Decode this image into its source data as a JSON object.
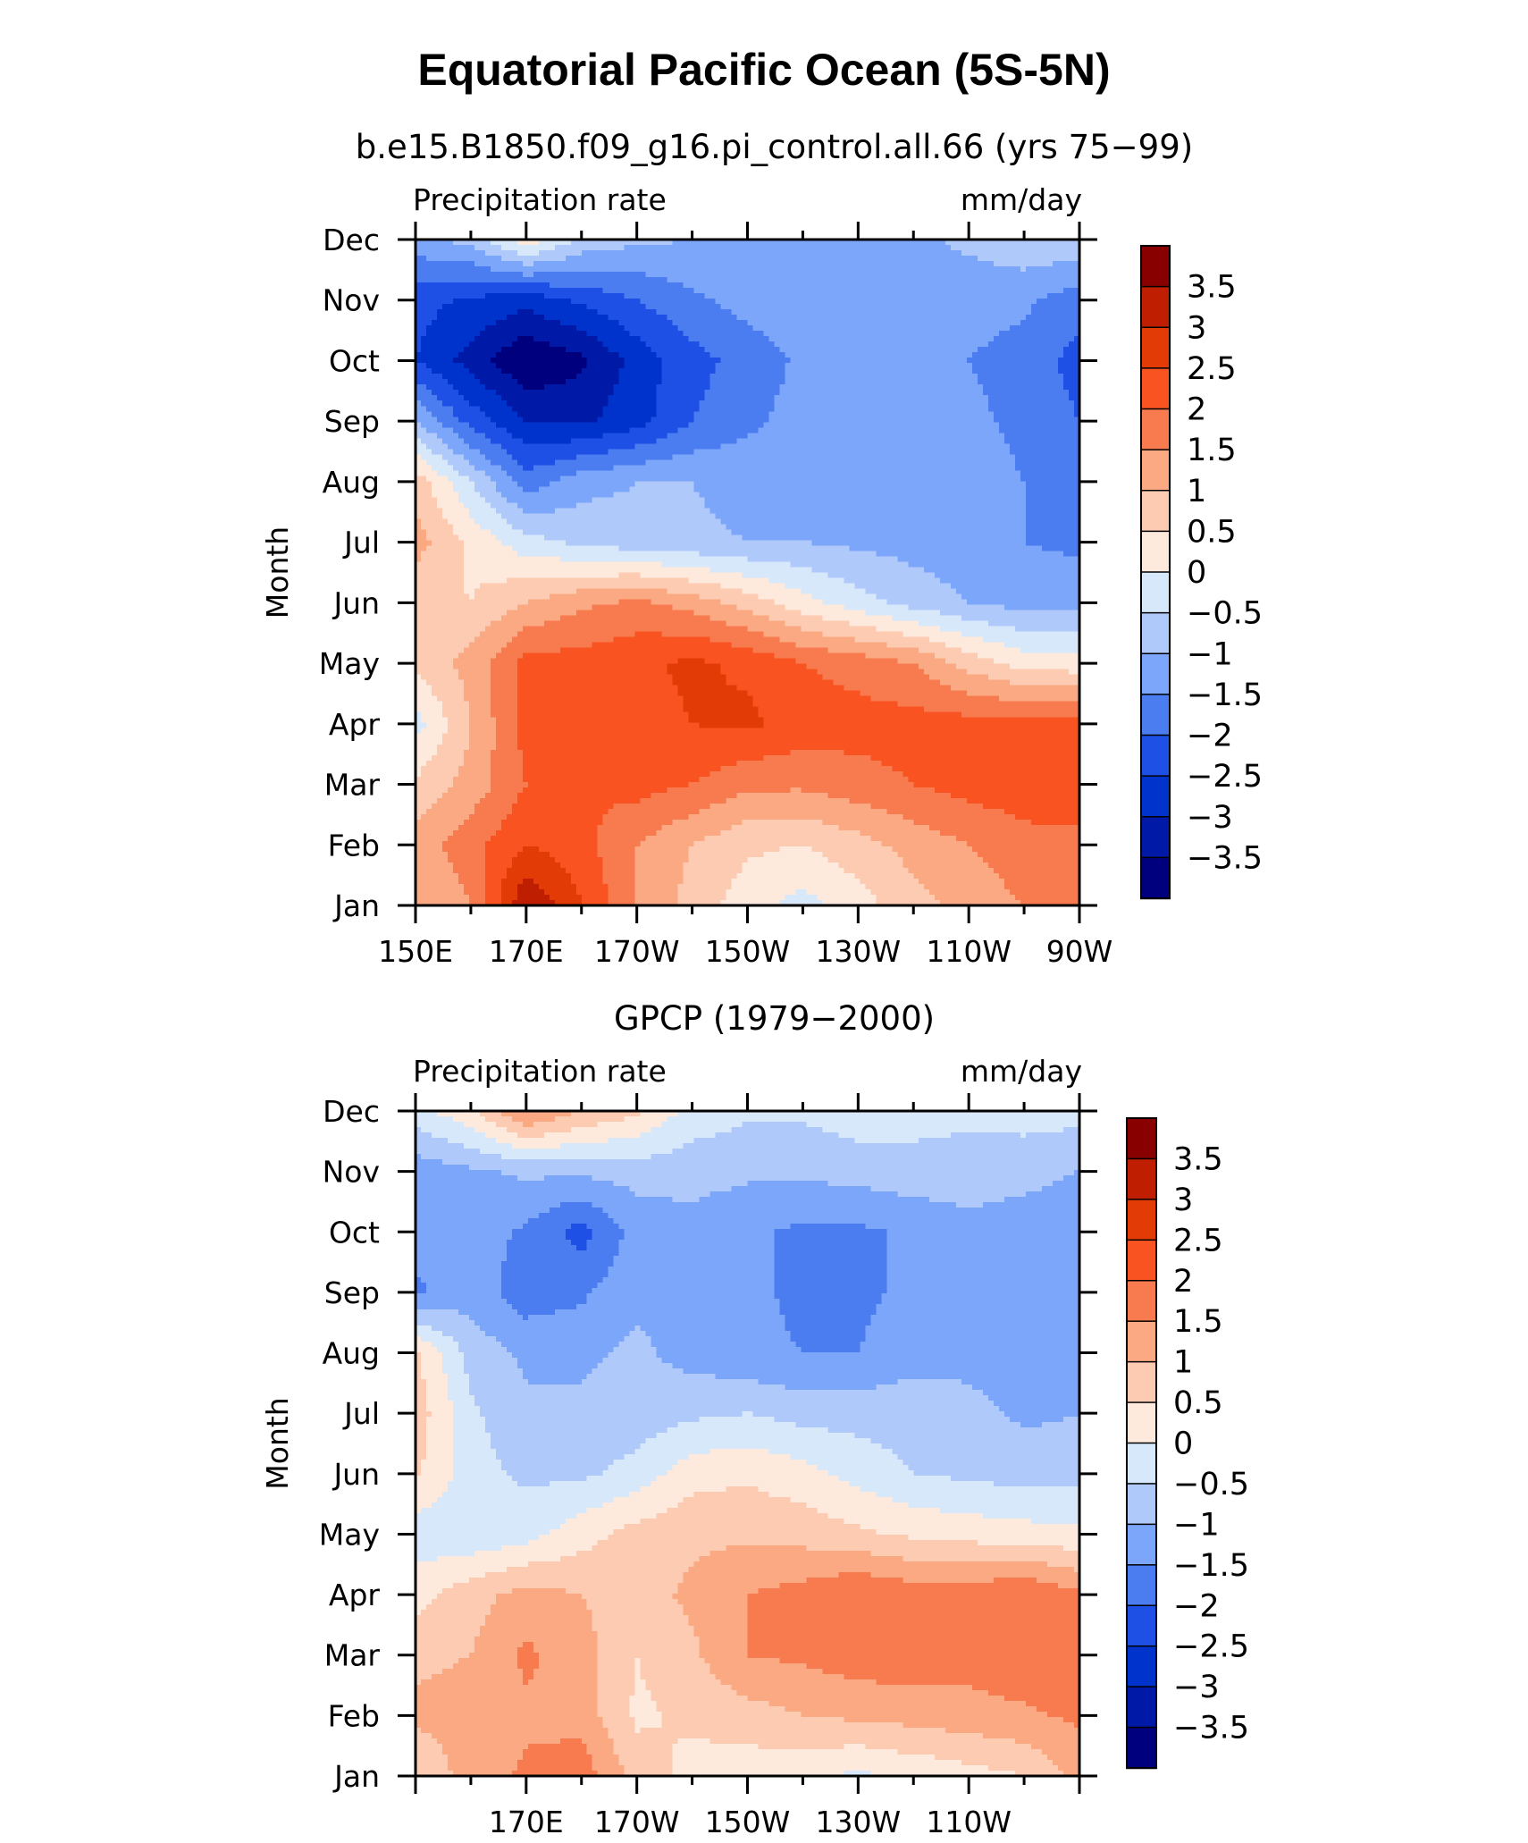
{
  "figure_title": "Equatorial Pacific Ocean (5S-5N)",
  "colorbar_colors": [
    "#00007f",
    "#0019a6",
    "#0032cc",
    "#1e50e6",
    "#4b7df0",
    "#7ca6f9",
    "#afc9fa",
    "#d7e8fb",
    "#fdeadc",
    "#fccbb2",
    "#faa983",
    "#f87b4f",
    "#f85320",
    "#e33b05",
    "#c01e00",
    "#880000"
  ],
  "chart_data": [
    {
      "type": "heatmap",
      "title": "b.e15.B1850.f09_g16.pi_control.all.66 (yrs 75−99)",
      "variable_label": "Precipitation rate",
      "units_label": "mm/day",
      "ylabel": "Month",
      "xlabel": "",
      "x_tick_labels": [
        "150E",
        "170E",
        "170W",
        "150W",
        "130W",
        "110W",
        "90W"
      ],
      "x_tick_values": [
        150,
        170,
        190,
        210,
        230,
        250,
        270
      ],
      "xlim": [
        150,
        270
      ],
      "y_tick_labels": [
        "Jan",
        "Feb",
        "Mar",
        "Apr",
        "May",
        "Jun",
        "Jul",
        "Aug",
        "Sep",
        "Oct",
        "Nov",
        "Dec"
      ],
      "y_tick_values": [
        1,
        2,
        3,
        4,
        5,
        6,
        7,
        8,
        9,
        10,
        11,
        12
      ],
      "ylim": [
        1,
        12
      ],
      "colorbar_levels": [
        -3.5,
        -3,
        -2.5,
        -2,
        -1.5,
        -1,
        -0.5,
        0,
        0.5,
        1,
        1.5,
        2,
        2.5,
        3,
        3.5
      ],
      "colorbar_labels": [
        "3.5",
        "3",
        "2.5",
        "2",
        "1.5",
        "1",
        "0.5",
        "0",
        "−0.5",
        "−1",
        "−1.5",
        "−2",
        "−2.5",
        "−3",
        "−3.5"
      ],
      "x_grid": [
        150,
        160,
        170,
        180,
        190,
        200,
        210,
        220,
        230,
        240,
        250,
        260,
        270
      ],
      "y_grid": [
        1,
        2,
        3,
        4,
        5,
        6,
        7,
        8,
        9,
        10,
        11,
        12
      ],
      "values": [
        [
          1.0,
          1.5,
          3.5,
          2.5,
          1.5,
          0.8,
          0.2,
          -0.2,
          0.3,
          0.8,
          1.2,
          1.5,
          1.5
        ],
        [
          1.2,
          1.8,
          2.5,
          2.2,
          1.5,
          1.0,
          0.6,
          0.5,
          0.8,
          1.2,
          1.5,
          1.8,
          1.8
        ],
        [
          0.6,
          1.2,
          2.0,
          2.0,
          2.2,
          2.0,
          1.6,
          1.6,
          1.8,
          2.0,
          2.2,
          2.3,
          2.5
        ],
        [
          -0.2,
          1.0,
          2.2,
          2.2,
          2.3,
          2.5,
          2.6,
          2.3,
          2.2,
          2.2,
          2.2,
          2.2,
          2.2
        ],
        [
          0.6,
          1.2,
          2.2,
          2.2,
          2.4,
          2.6,
          2.4,
          2.0,
          1.8,
          1.5,
          0.8,
          0.3,
          0.2
        ],
        [
          0.6,
          0.5,
          1.0,
          1.4,
          1.6,
          1.3,
          0.8,
          0.2,
          -0.3,
          -0.7,
          -1.0,
          -1.2,
          -1.2
        ],
        [
          1.2,
          0.4,
          -0.3,
          -0.6,
          -0.8,
          -0.9,
          -1.0,
          -1.0,
          -1.1,
          -1.2,
          -1.3,
          -1.5,
          -1.6
        ],
        [
          0.8,
          -0.5,
          -1.8,
          -1.2,
          -1.0,
          -1.0,
          -1.2,
          -1.1,
          -1.1,
          -1.2,
          -1.3,
          -1.5,
          -1.9
        ],
        [
          -1.0,
          -2.2,
          -3.0,
          -3.1,
          -2.7,
          -2.0,
          -1.6,
          -1.3,
          -1.2,
          -1.3,
          -1.4,
          -1.6,
          -2.0
        ],
        [
          -2.5,
          -3.2,
          -4.0,
          -3.6,
          -2.8,
          -2.2,
          -1.8,
          -1.4,
          -1.3,
          -1.4,
          -1.5,
          -1.7,
          -2.2
        ],
        [
          -2.3,
          -2.6,
          -2.8,
          -2.4,
          -2.0,
          -1.6,
          -1.3,
          -1.2,
          -1.2,
          -1.2,
          -1.3,
          -1.4,
          -1.8
        ],
        [
          -1.2,
          -0.8,
          0.3,
          -0.6,
          -0.9,
          -1.0,
          -1.1,
          -1.1,
          -1.1,
          -1.1,
          -0.9,
          -0.6,
          -0.6
        ]
      ]
    },
    {
      "type": "heatmap",
      "title": "GPCP (1979−2000)",
      "variable_label": "Precipitation rate",
      "units_label": "mm/day",
      "ylabel": "Month",
      "xlabel": "",
      "x_tick_labels": [
        "170E",
        "170W",
        "150W",
        "130W",
        "110W"
      ],
      "x_tick_values": [
        170,
        190,
        210,
        230,
        250
      ],
      "xlim": [
        150,
        270
      ],
      "y_tick_labels": [
        "Jan",
        "Feb",
        "Mar",
        "Apr",
        "May",
        "Jun",
        "Jul",
        "Aug",
        "Sep",
        "Oct",
        "Nov",
        "Dec"
      ],
      "y_tick_values": [
        1,
        2,
        3,
        4,
        5,
        6,
        7,
        8,
        9,
        10,
        11,
        12
      ],
      "ylim": [
        1,
        12
      ],
      "colorbar_levels": [
        -3.5,
        -3,
        -2.5,
        -2,
        -1.5,
        -1,
        -0.5,
        0,
        0.5,
        1,
        1.5,
        2,
        2.5,
        3,
        3.5
      ],
      "colorbar_labels": [
        "3.5",
        "3",
        "2.5",
        "2",
        "1.5",
        "1",
        "0.5",
        "0",
        "−0.5",
        "−1",
        "−1.5",
        "−2",
        "−2.5",
        "−3",
        "−3.5"
      ],
      "x_grid": [
        150,
        160,
        170,
        180,
        190,
        200,
        210,
        220,
        230,
        240,
        250,
        260,
        270
      ],
      "y_grid": [
        1,
        2,
        3,
        4,
        5,
        6,
        7,
        8,
        9,
        10,
        11,
        12
      ],
      "values": [
        [
          0.6,
          1.2,
          1.6,
          1.8,
          0.8,
          0.3,
          0.2,
          0.1,
          -0.1,
          0.1,
          0.3,
          0.5,
          1.2
        ],
        [
          1.1,
          1.2,
          1.4,
          1.3,
          0.4,
          0.6,
          0.8,
          1.0,
          1.1,
          1.2,
          1.3,
          1.4,
          1.6
        ],
        [
          0.9,
          1.0,
          1.6,
          1.2,
          0.5,
          0.9,
          1.5,
          1.6,
          1.8,
          1.8,
          1.7,
          1.9,
          1.8
        ],
        [
          0.3,
          0.8,
          1.2,
          1.0,
          0.8,
          1.1,
          1.5,
          1.7,
          2.0,
          1.8,
          1.8,
          2.0,
          1.6
        ],
        [
          -0.3,
          -0.4,
          -0.2,
          0.3,
          0.7,
          0.9,
          0.9,
          0.8,
          0.6,
          0.4,
          0.3,
          0.2,
          0.1
        ],
        [
          0.6,
          -0.3,
          -0.6,
          -0.6,
          -0.3,
          0.3,
          0.4,
          0.2,
          -0.2,
          -0.5,
          -0.6,
          -0.7,
          -0.7
        ],
        [
          0.8,
          -0.4,
          -0.9,
          -0.9,
          -0.8,
          -0.6,
          -0.5,
          -0.7,
          -0.7,
          -0.7,
          -0.8,
          -1.1,
          -1.0
        ],
        [
          0.6,
          -0.7,
          -1.1,
          -1.1,
          -0.9,
          -1.2,
          -1.4,
          -1.5,
          -1.5,
          -1.2,
          -1.2,
          -1.4,
          -1.3
        ],
        [
          -1.6,
          -1.2,
          -1.8,
          -1.6,
          -1.1,
          -1.1,
          -1.4,
          -1.6,
          -1.6,
          -1.4,
          -1.1,
          -1.2,
          -1.3
        ],
        [
          -1.3,
          -1.2,
          -1.6,
          -2.2,
          -1.3,
          -1.2,
          -1.4,
          -1.6,
          -1.6,
          -1.4,
          -1.2,
          -1.3,
          -1.5
        ],
        [
          -1.3,
          -1.1,
          -0.9,
          -0.9,
          -0.8,
          -0.8,
          -0.9,
          -0.9,
          -0.8,
          -0.7,
          -0.7,
          -0.8,
          -1.0
        ],
        [
          -0.2,
          0.4,
          1.6,
          1.0,
          0.6,
          -0.2,
          -0.4,
          -0.4,
          -0.2,
          -0.3,
          -0.4,
          -0.3,
          -0.3
        ]
      ]
    }
  ]
}
